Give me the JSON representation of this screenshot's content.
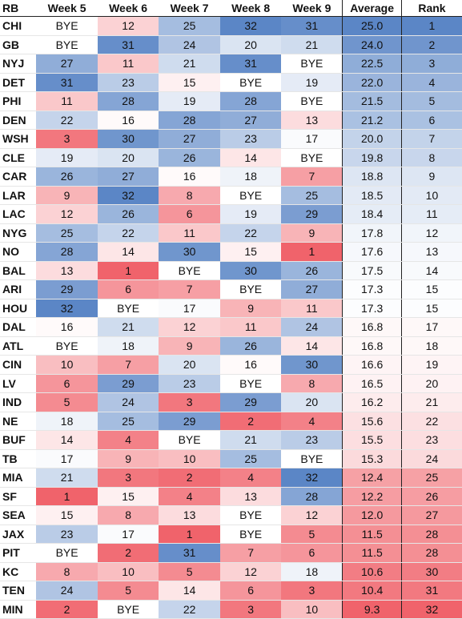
{
  "chart_data": {
    "type": "table",
    "columns": [
      "RB",
      "Week 5",
      "Week 6",
      "Week 7",
      "Week 8",
      "Week 9",
      "Average",
      "Rank"
    ],
    "rows": [
      {
        "team": "CHI",
        "weeks": [
          "BYE",
          "12",
          "25",
          "32",
          "31"
        ],
        "average": "25.0",
        "rank": "1"
      },
      {
        "team": "GB",
        "weeks": [
          "BYE",
          "31",
          "24",
          "20",
          "21"
        ],
        "average": "24.0",
        "rank": "2"
      },
      {
        "team": "NYJ",
        "weeks": [
          "27",
          "11",
          "21",
          "31",
          "BYE"
        ],
        "average": "22.5",
        "rank": "3"
      },
      {
        "team": "DET",
        "weeks": [
          "31",
          "23",
          "15",
          "BYE",
          "19"
        ],
        "average": "22.0",
        "rank": "4"
      },
      {
        "team": "PHI",
        "weeks": [
          "11",
          "28",
          "19",
          "28",
          "BYE"
        ],
        "average": "21.5",
        "rank": "5"
      },
      {
        "team": "DEN",
        "weeks": [
          "22",
          "16",
          "28",
          "27",
          "13"
        ],
        "average": "21.2",
        "rank": "6"
      },
      {
        "team": "WSH",
        "weeks": [
          "3",
          "30",
          "27",
          "23",
          "17"
        ],
        "average": "20.0",
        "rank": "7"
      },
      {
        "team": "CLE",
        "weeks": [
          "19",
          "20",
          "26",
          "14",
          "BYE"
        ],
        "average": "19.8",
        "rank": "8"
      },
      {
        "team": "CAR",
        "weeks": [
          "26",
          "27",
          "16",
          "18",
          "7"
        ],
        "average": "18.8",
        "rank": "9"
      },
      {
        "team": "LAR",
        "weeks": [
          "9",
          "32",
          "8",
          "BYE",
          "25"
        ],
        "average": "18.5",
        "rank": "10"
      },
      {
        "team": "LAC",
        "weeks": [
          "12",
          "26",
          "6",
          "19",
          "29"
        ],
        "average": "18.4",
        "rank": "11"
      },
      {
        "team": "NYG",
        "weeks": [
          "25",
          "22",
          "11",
          "22",
          "9"
        ],
        "average": "17.8",
        "rank": "12"
      },
      {
        "team": "NO",
        "weeks": [
          "28",
          "14",
          "30",
          "15",
          "1"
        ],
        "average": "17.6",
        "rank": "13"
      },
      {
        "team": "BAL",
        "weeks": [
          "13",
          "1",
          "BYE",
          "30",
          "26"
        ],
        "average": "17.5",
        "rank": "14"
      },
      {
        "team": "ARI",
        "weeks": [
          "29",
          "6",
          "7",
          "BYE",
          "27"
        ],
        "average": "17.3",
        "rank": "15"
      },
      {
        "team": "HOU",
        "weeks": [
          "32",
          "BYE",
          "17",
          "9",
          "11"
        ],
        "average": "17.3",
        "rank": "15"
      },
      {
        "team": "DAL",
        "weeks": [
          "16",
          "21",
          "12",
          "11",
          "24"
        ],
        "average": "16.8",
        "rank": "17"
      },
      {
        "team": "ATL",
        "weeks": [
          "BYE",
          "18",
          "9",
          "26",
          "14"
        ],
        "average": "16.8",
        "rank": "18"
      },
      {
        "team": "CIN",
        "weeks": [
          "10",
          "7",
          "20",
          "16",
          "30"
        ],
        "average": "16.6",
        "rank": "19"
      },
      {
        "team": "LV",
        "weeks": [
          "6",
          "29",
          "23",
          "BYE",
          "8"
        ],
        "average": "16.5",
        "rank": "20"
      },
      {
        "team": "IND",
        "weeks": [
          "5",
          "24",
          "3",
          "29",
          "20"
        ],
        "average": "16.2",
        "rank": "21"
      },
      {
        "team": "NE",
        "weeks": [
          "18",
          "25",
          "29",
          "2",
          "4"
        ],
        "average": "15.6",
        "rank": "22"
      },
      {
        "team": "BUF",
        "weeks": [
          "14",
          "4",
          "BYE",
          "21",
          "23"
        ],
        "average": "15.5",
        "rank": "23"
      },
      {
        "team": "TB",
        "weeks": [
          "17",
          "9",
          "10",
          "25",
          "BYE"
        ],
        "average": "15.3",
        "rank": "24"
      },
      {
        "team": "MIA",
        "weeks": [
          "21",
          "3",
          "2",
          "4",
          "32"
        ],
        "average": "12.4",
        "rank": "25"
      },
      {
        "team": "SF",
        "weeks": [
          "1",
          "15",
          "4",
          "13",
          "28"
        ],
        "average": "12.2",
        "rank": "26"
      },
      {
        "team": "SEA",
        "weeks": [
          "15",
          "8",
          "13",
          "BYE",
          "12"
        ],
        "average": "12.0",
        "rank": "27"
      },
      {
        "team": "JAX",
        "weeks": [
          "23",
          "17",
          "1",
          "BYE",
          "5"
        ],
        "average": "11.5",
        "rank": "28"
      },
      {
        "team": "PIT",
        "weeks": [
          "BYE",
          "2",
          "31",
          "7",
          "6"
        ],
        "average": "11.5",
        "rank": "28"
      },
      {
        "team": "KC",
        "weeks": [
          "8",
          "10",
          "5",
          "12",
          "18"
        ],
        "average": "10.6",
        "rank": "30"
      },
      {
        "team": "TEN",
        "weeks": [
          "24",
          "5",
          "14",
          "6",
          "3"
        ],
        "average": "10.4",
        "rank": "31"
      },
      {
        "team": "MIN",
        "weeks": [
          "2",
          "BYE",
          "22",
          "3",
          "10"
        ],
        "average": "9.3",
        "rank": "32"
      }
    ]
  },
  "colors": {
    "high": "#5b86c6",
    "mid": "#ffffff",
    "low": "#f0636b",
    "bye": "#ffffff"
  }
}
